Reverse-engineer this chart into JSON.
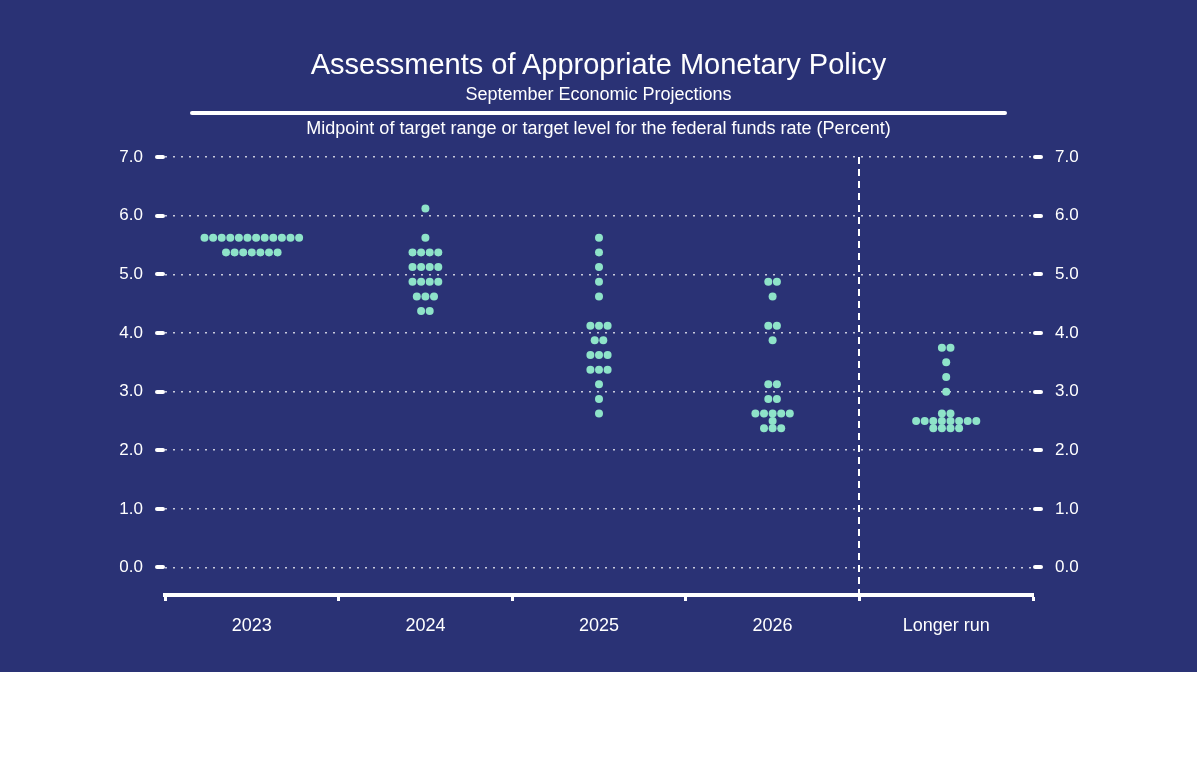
{
  "chart_data": {
    "type": "scatter",
    "title": "Assessments of Appropriate Monetary Policy",
    "subtitle": "September Economic Projections",
    "ylabel": "Midpoint of target range or target level for the federal funds rate (Percent)",
    "categories": [
      "2023",
      "2024",
      "2025",
      "2026",
      "Longer run"
    ],
    "series": [
      {
        "color": "#8ee3c9",
        "values": [
          5.625,
          6.125,
          5.625,
          4.875,
          3.75
        ]
      },
      {
        "color": "#8ee3c9",
        "values": [
          5.625,
          5.625,
          5.375,
          4.875,
          3.75
        ]
      },
      {
        "color": "#8ee3c9",
        "values": [
          5.625,
          5.375,
          5.125,
          4.625,
          3.5
        ]
      },
      {
        "color": "#8ee3c9",
        "values": [
          5.625,
          5.375,
          4.875,
          4.125,
          3.25
        ]
      },
      {
        "color": "#8ee3c9",
        "values": [
          5.625,
          5.375,
          4.625,
          4.125,
          3.0
        ]
      },
      {
        "color": "#8ee3c9",
        "values": [
          5.625,
          5.375,
          4.125,
          3.875,
          2.625
        ]
      },
      {
        "color": "#8ee3c9",
        "values": [
          5.625,
          5.125,
          4.125,
          3.125,
          2.625
        ]
      },
      {
        "color": "#8ee3c9",
        "values": [
          5.625,
          5.125,
          4.125,
          3.125,
          2.5
        ]
      },
      {
        "color": "#8ee3c9",
        "values": [
          5.625,
          5.125,
          3.875,
          2.875,
          2.5
        ]
      },
      {
        "color": "#8ee3c9",
        "values": [
          5.625,
          5.125,
          3.875,
          2.875,
          2.5
        ]
      },
      {
        "color": "#8ee3c9",
        "values": [
          5.625,
          4.875,
          3.625,
          2.625,
          2.5
        ]
      },
      {
        "color": "#8ee3c9",
        "values": [
          5.625,
          4.875,
          3.625,
          2.625,
          2.5
        ]
      },
      {
        "color": "#8ee3c9",
        "values": [
          5.375,
          4.875,
          3.625,
          2.625,
          2.5
        ]
      },
      {
        "color": "#8ee3c9",
        "values": [
          5.375,
          4.875,
          3.375,
          2.625,
          2.5
        ]
      },
      {
        "color": "#8ee3c9",
        "values": [
          5.375,
          4.625,
          3.375,
          2.625,
          2.5
        ]
      },
      {
        "color": "#8ee3c9",
        "values": [
          5.375,
          4.625,
          3.375,
          2.5,
          2.375
        ]
      },
      {
        "color": "#8ee3c9",
        "values": [
          5.375,
          4.625,
          3.125,
          2.375,
          2.375
        ]
      },
      {
        "color": "#8ee3c9",
        "values": [
          5.375,
          4.375,
          2.875,
          2.375,
          2.375
        ]
      },
      {
        "color": "#8ee3c9",
        "values": [
          5.375,
          4.375,
          2.625,
          2.375,
          2.375
        ]
      }
    ],
    "ylim": [
      -0.47,
      7.0
    ],
    "yticks": [
      {
        "value": 0,
        "label": "0.0"
      },
      {
        "value": 1,
        "label": "1.0"
      },
      {
        "value": 2,
        "label": "2.0"
      },
      {
        "value": 3,
        "label": "3.0"
      },
      {
        "value": 4,
        "label": "4.0"
      },
      {
        "value": 5,
        "label": "5.0"
      },
      {
        "value": 6,
        "label": "6.0"
      },
      {
        "value": 7,
        "label": "7.0"
      }
    ],
    "y2lim": [
      -0.47,
      7.0
    ],
    "y2ticks": [
      {
        "value": 0,
        "label": "0.0"
      },
      {
        "value": 1,
        "label": "1.0"
      },
      {
        "value": 2,
        "label": "2.0"
      },
      {
        "value": 3,
        "label": "3.0"
      },
      {
        "value": 4,
        "label": "4.0"
      },
      {
        "value": 5,
        "label": "5.0"
      },
      {
        "value": 6,
        "label": "6.0"
      },
      {
        "value": 7,
        "label": "7.0"
      }
    ],
    "grid": "y",
    "marker": "circle"
  }
}
